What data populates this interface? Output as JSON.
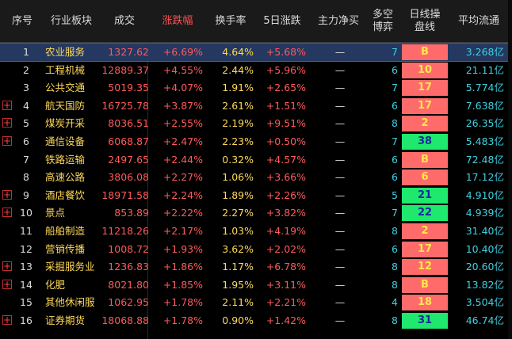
{
  "columns": [
    "序号",
    "行业板块",
    "成交",
    "涨跌幅",
    "换手率",
    "5日涨跌",
    "主力净买",
    "多空\n博弈",
    "日线操\n盘线",
    "平均流通"
  ],
  "header_extra": "",
  "rows": [
    {
      "idx": "1",
      "plus": false,
      "name": "农业服务",
      "vol": "1327.62",
      "chg": "+6.69%",
      "turn": "4.64%",
      "chg5": "+5.68%",
      "net": "—",
      "ls": "7",
      "badge": "B",
      "bcolor": "r",
      "flow": "3.268亿",
      "selected": true
    },
    {
      "idx": "2",
      "plus": false,
      "name": "工程机械",
      "vol": "12889.37",
      "chg": "+4.55%",
      "turn": "2.44%",
      "chg5": "+5.96%",
      "net": "—",
      "ls": "6",
      "badge": "10",
      "bcolor": "r",
      "flow": "21.11亿",
      "selected": false
    },
    {
      "idx": "3",
      "plus": false,
      "name": "公共交通",
      "vol": "5019.35",
      "chg": "+4.07%",
      "turn": "1.91%",
      "chg5": "+2.65%",
      "net": "—",
      "ls": "7",
      "badge": "17",
      "bcolor": "r",
      "flow": "5.774亿",
      "selected": false
    },
    {
      "idx": "4",
      "plus": true,
      "name": "航天国防",
      "vol": "16725.78",
      "chg": "+3.87%",
      "turn": "2.61%",
      "chg5": "+1.51%",
      "net": "—",
      "ls": "6",
      "badge": "17",
      "bcolor": "r",
      "flow": "7.638亿",
      "selected": false
    },
    {
      "idx": "5",
      "plus": true,
      "name": "煤炭开采",
      "vol": "8036.51",
      "chg": "+2.55%",
      "turn": "2.19%",
      "chg5": "+9.51%",
      "net": "—",
      "ls": "8",
      "badge": "2",
      "bcolor": "r",
      "flow": "26.35亿",
      "selected": false
    },
    {
      "idx": "6",
      "plus": true,
      "name": "通信设备",
      "vol": "6068.87",
      "chg": "+2.47%",
      "turn": "2.23%",
      "chg5": "+0.50%",
      "net": "—",
      "ls": "7",
      "badge": "38",
      "bcolor": "g",
      "flow": "5.483亿",
      "selected": false
    },
    {
      "idx": "7",
      "plus": false,
      "name": "铁路运输",
      "vol": "2497.65",
      "chg": "+2.44%",
      "turn": "0.32%",
      "chg5": "+4.57%",
      "net": "—",
      "ls": "6",
      "badge": "B",
      "bcolor": "r",
      "flow": "72.48亿",
      "selected": false
    },
    {
      "idx": "8",
      "plus": false,
      "name": "高速公路",
      "vol": "3806.08",
      "chg": "+2.27%",
      "turn": "1.06%",
      "chg5": "+3.66%",
      "net": "—",
      "ls": "6",
      "badge": "6",
      "bcolor": "r",
      "flow": "17.12亿",
      "selected": false
    },
    {
      "idx": "9",
      "plus": true,
      "name": "酒店餐饮",
      "vol": "18971.58",
      "chg": "+2.24%",
      "turn": "1.89%",
      "chg5": "+2.26%",
      "net": "—",
      "ls": "5",
      "badge": "21",
      "bcolor": "g",
      "flow": "4.910亿",
      "selected": false
    },
    {
      "idx": "10",
      "plus": true,
      "name": "景点",
      "vol": "853.89",
      "chg": "+2.22%",
      "turn": "2.27%",
      "chg5": "+3.82%",
      "net": "—",
      "ls": "7",
      "badge": "22",
      "bcolor": "g",
      "flow": "4.939亿",
      "selected": false
    },
    {
      "idx": "11",
      "plus": false,
      "name": "船舶制造",
      "vol": "11218.26",
      "chg": "+2.17%",
      "turn": "1.03%",
      "chg5": "+4.19%",
      "net": "—",
      "ls": "8",
      "badge": "2",
      "bcolor": "r",
      "flow": "31.40亿",
      "selected": false
    },
    {
      "idx": "12",
      "plus": false,
      "name": "营销传播",
      "vol": "1008.72",
      "chg": "+1.93%",
      "turn": "3.62%",
      "chg5": "+2.02%",
      "net": "—",
      "ls": "6",
      "badge": "17",
      "bcolor": "r",
      "flow": "10.40亿",
      "selected": false
    },
    {
      "idx": "13",
      "plus": true,
      "name": "采掘服务业",
      "vol": "1236.83",
      "chg": "+1.86%",
      "turn": "1.17%",
      "chg5": "+6.78%",
      "net": "—",
      "ls": "8",
      "badge": "12",
      "bcolor": "r",
      "flow": "20.60亿",
      "selected": false
    },
    {
      "idx": "14",
      "plus": true,
      "name": "化肥",
      "vol": "8021.80",
      "chg": "+1.85%",
      "turn": "1.95%",
      "chg5": "+3.11%",
      "net": "—",
      "ls": "8",
      "badge": "B",
      "bcolor": "r",
      "flow": "13.82亿",
      "selected": false
    },
    {
      "idx": "15",
      "plus": false,
      "name": "其他休闲服务",
      "vol": "1062.95",
      "chg": "+1.78%",
      "turn": "2.11%",
      "chg5": "+2.21%",
      "net": "—",
      "ls": "4",
      "badge": "18",
      "bcolor": "r",
      "flow": "3.504亿",
      "selected": false
    },
    {
      "idx": "16",
      "plus": true,
      "name": "证券期货",
      "vol": "18068.88",
      "chg": "+1.78%",
      "turn": "0.90%",
      "chg5": "+1.42%",
      "net": "—",
      "ls": "8",
      "badge": "31",
      "bcolor": "g",
      "flow": "46.74亿",
      "selected": false
    }
  ]
}
